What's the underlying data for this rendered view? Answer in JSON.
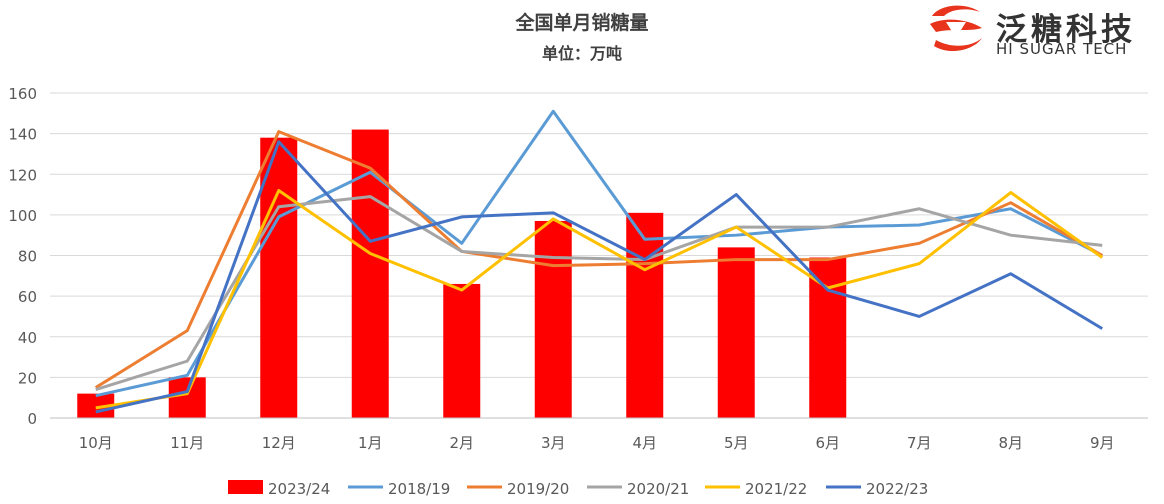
{
  "chart_data": {
    "type": "bar+line",
    "title": "全国单月销糖量",
    "subtitle": "单位：万吨",
    "categories": [
      "10月",
      "11月",
      "12月",
      "1月",
      "2月",
      "3月",
      "4月",
      "5月",
      "6月",
      "7月",
      "8月",
      "9月"
    ],
    "ylim": [
      0,
      160
    ],
    "yticks": [
      0,
      20,
      40,
      60,
      80,
      100,
      120,
      140,
      160
    ],
    "grid": true,
    "legend_position": "bottom",
    "bar_series": {
      "name": "2023/24",
      "color": "#ff0000",
      "values": [
        12,
        20,
        138,
        142,
        66,
        97,
        101,
        84,
        79,
        null,
        null,
        null
      ]
    },
    "series": [
      {
        "name": "2018/19",
        "color": "#5b9bd5",
        "values": [
          11,
          21,
          99,
          121,
          86,
          151,
          88,
          90,
          94,
          95,
          103,
          80
        ]
      },
      {
        "name": "2019/20",
        "color": "#ed7d31",
        "values": [
          15,
          43,
          141,
          123,
          82,
          75,
          76,
          78,
          78,
          86,
          106,
          80
        ]
      },
      {
        "name": "2020/21",
        "color": "#a5a5a5",
        "values": [
          14,
          28,
          104,
          109,
          82,
          79,
          78,
          94,
          94,
          103,
          90,
          85
        ]
      },
      {
        "name": "2021/22",
        "color": "#ffc000",
        "values": [
          5,
          12,
          112,
          81,
          63,
          98,
          73,
          94,
          64,
          76,
          111,
          79
        ]
      },
      {
        "name": "2022/23",
        "color": "#4472c4",
        "values": [
          3,
          13,
          136,
          87,
          99,
          101,
          78,
          110,
          63,
          50,
          71,
          44
        ]
      }
    ]
  },
  "logo": {
    "name": "泛糖科技",
    "tagline": "HI SUGAR TECH",
    "color": "#e8341c"
  }
}
